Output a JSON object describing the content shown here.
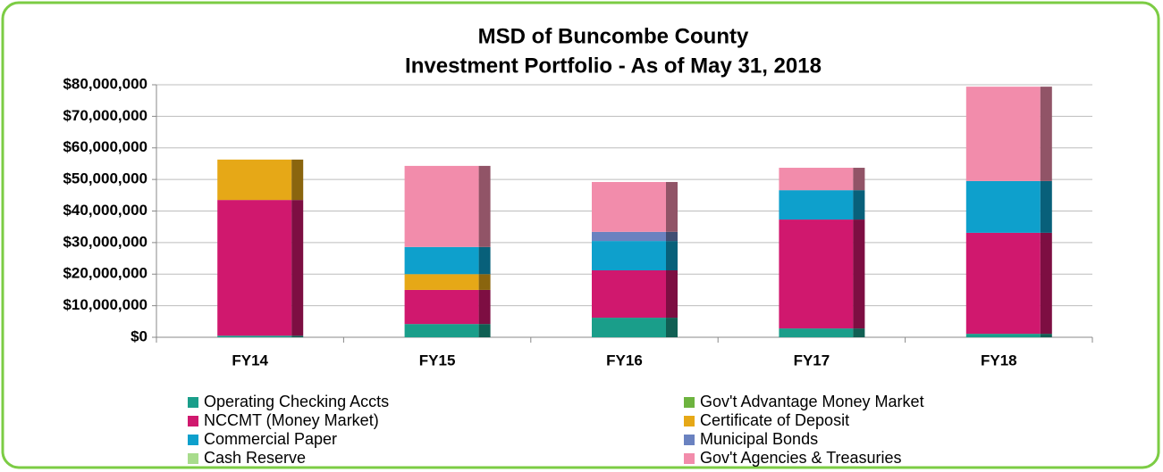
{
  "chart_data": {
    "type": "stacked_bar",
    "title": [
      "MSD of Buncombe County",
      "Investment Portfolio - As of May 31, 2018"
    ],
    "categories": [
      "FY14",
      "FY15",
      "FY16",
      "FY17",
      "FY18"
    ],
    "series": [
      {
        "name": "Operating Checking Accts",
        "color": "#1a9e8a",
        "values": [
          0.5,
          4.2,
          6.2,
          2.8,
          1.1
        ]
      },
      {
        "name": "Gov't Advantage Money Market",
        "color": "#6db33f",
        "values": [
          0,
          0,
          0,
          0,
          0
        ]
      },
      {
        "name": "NCCMT (Money Market)",
        "color": "#d0186e",
        "values": [
          43,
          10.8,
          15,
          34.5,
          32
        ]
      },
      {
        "name": "Certificate of Deposit",
        "color": "#e6a817",
        "values": [
          12.8,
          5,
          0,
          0,
          0
        ]
      },
      {
        "name": "Commercial  Paper",
        "color": "#0ea0cc",
        "values": [
          0,
          8.6,
          9.3,
          9.3,
          16.4
        ]
      },
      {
        "name": "Municipal Bonds",
        "color": "#6a82c0",
        "values": [
          0,
          0,
          2.9,
          0,
          0
        ]
      },
      {
        "name": "Cash  Reserve",
        "color": "#a8dc8c",
        "values": [
          0,
          0,
          0,
          0,
          0
        ]
      },
      {
        "name": "Gov't Agencies & Treasuries",
        "color": "#f28cab",
        "values": [
          0,
          25.7,
          15.8,
          7.1,
          29.9
        ]
      }
    ],
    "ylim": [
      0,
      80
    ],
    "yticks": [
      {
        "value": 0,
        "label": "$0"
      },
      {
        "value": 10,
        "label": "$10,000,000"
      },
      {
        "value": 20,
        "label": "$20,000,000"
      },
      {
        "value": 30,
        "label": "$30,000,000"
      },
      {
        "value": 40,
        "label": "$40,000,000"
      },
      {
        "value": 50,
        "label": "$50,000,000"
      },
      {
        "value": 60,
        "label": "$60,000,000"
      },
      {
        "value": 70,
        "label": "$70,000,000"
      },
      {
        "value": 80,
        "label": "$80,000,000"
      }
    ],
    "grid": true
  }
}
